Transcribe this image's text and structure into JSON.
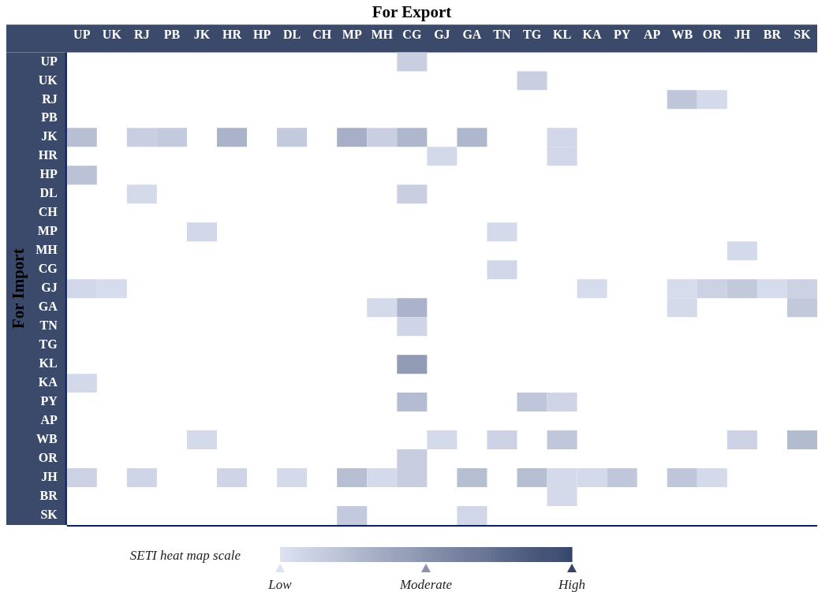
{
  "chart_data": {
    "type": "heatmap",
    "title": "For Export",
    "ylabel": "For Import",
    "clabel": "SETI heat map scale",
    "categories": [
      "UP",
      "UK",
      "RJ",
      "PB",
      "JK",
      "HR",
      "HP",
      "DL",
      "CH",
      "MP",
      "MH",
      "CG",
      "GJ",
      "GA",
      "TN",
      "TG",
      "KL",
      "KA",
      "PY",
      "AP",
      "WB",
      "OR",
      "JH",
      "BR",
      "SK"
    ],
    "y_categories": [
      "UP",
      "UK",
      "RJ",
      "PB",
      "JK",
      "HR",
      "HP",
      "DL",
      "CH",
      "MP",
      "MH",
      "CG",
      "GJ",
      "GA",
      "TN",
      "TG",
      "KL",
      "KA",
      "PY",
      "AP",
      "WB",
      "OR",
      "JH",
      "BR",
      "SK"
    ],
    "cells": [
      [
        null,
        null,
        null,
        null,
        null,
        null,
        null,
        null,
        null,
        null,
        null,
        0.12,
        null,
        null,
        null,
        null,
        null,
        null,
        null,
        null,
        null,
        null,
        null,
        null,
        null
      ],
      [
        null,
        null,
        null,
        null,
        null,
        null,
        null,
        null,
        null,
        null,
        null,
        null,
        null,
        null,
        null,
        0.12,
        null,
        null,
        null,
        null,
        null,
        null,
        null,
        null,
        null
      ],
      [
        null,
        null,
        null,
        null,
        null,
        null,
        null,
        null,
        null,
        null,
        null,
        null,
        null,
        null,
        null,
        null,
        null,
        null,
        null,
        null,
        0.18,
        0.05,
        null,
        null,
        null
      ],
      [
        null,
        null,
        null,
        null,
        null,
        null,
        null,
        null,
        null,
        null,
        null,
        null,
        null,
        null,
        null,
        null,
        null,
        null,
        null,
        null,
        null,
        null,
        null,
        null,
        null
      ],
      [
        0.22,
        null,
        0.12,
        0.15,
        null,
        0.3,
        null,
        0.15,
        null,
        0.32,
        0.12,
        0.27,
        null,
        0.27,
        null,
        null,
        0.07,
        null,
        null,
        null,
        null,
        null,
        null,
        null,
        null
      ],
      [
        null,
        null,
        null,
        null,
        null,
        null,
        null,
        null,
        null,
        null,
        null,
        null,
        0.06,
        null,
        null,
        null,
        0.07,
        null,
        null,
        null,
        null,
        null,
        null,
        null,
        null
      ],
      [
        0.2,
        null,
        null,
        null,
        null,
        null,
        null,
        null,
        null,
        null,
        null,
        null,
        null,
        null,
        null,
        null,
        null,
        null,
        null,
        null,
        null,
        null,
        null,
        null,
        null
      ],
      [
        null,
        null,
        0.05,
        null,
        null,
        null,
        null,
        null,
        null,
        null,
        null,
        0.12,
        null,
        null,
        null,
        null,
        null,
        null,
        null,
        null,
        null,
        null,
        null,
        null,
        null
      ],
      [
        null,
        null,
        null,
        null,
        null,
        null,
        null,
        null,
        null,
        null,
        null,
        null,
        null,
        null,
        null,
        null,
        null,
        null,
        null,
        null,
        null,
        null,
        null,
        null,
        null
      ],
      [
        null,
        null,
        null,
        null,
        0.07,
        null,
        null,
        null,
        null,
        null,
        null,
        null,
        null,
        null,
        0.05,
        null,
        null,
        null,
        null,
        null,
        null,
        null,
        null,
        null,
        null
      ],
      [
        null,
        null,
        null,
        null,
        null,
        null,
        null,
        null,
        null,
        null,
        null,
        null,
        null,
        null,
        null,
        null,
        null,
        null,
        null,
        null,
        null,
        null,
        0.05,
        null,
        null
      ],
      [
        null,
        null,
        null,
        null,
        null,
        null,
        null,
        null,
        null,
        null,
        null,
        null,
        null,
        null,
        0.07,
        null,
        null,
        null,
        null,
        null,
        null,
        null,
        null,
        null,
        null
      ],
      [
        0.07,
        0.04,
        null,
        null,
        null,
        null,
        null,
        null,
        null,
        null,
        null,
        null,
        null,
        null,
        null,
        null,
        null,
        0.04,
        null,
        null,
        0.04,
        0.1,
        0.16,
        0.04,
        0.1
      ],
      [
        null,
        null,
        null,
        null,
        null,
        null,
        null,
        null,
        null,
        null,
        0.05,
        0.3,
        null,
        null,
        null,
        null,
        null,
        null,
        null,
        null,
        0.05,
        null,
        null,
        null,
        0.16
      ],
      [
        null,
        null,
        null,
        null,
        null,
        null,
        null,
        null,
        null,
        null,
        null,
        0.08,
        null,
        null,
        null,
        null,
        null,
        null,
        null,
        null,
        null,
        null,
        null,
        null,
        null
      ],
      [
        null,
        null,
        null,
        null,
        null,
        null,
        null,
        null,
        null,
        null,
        null,
        null,
        null,
        null,
        null,
        null,
        null,
        null,
        null,
        null,
        null,
        null,
        null,
        null,
        null
      ],
      [
        null,
        null,
        null,
        null,
        null,
        null,
        null,
        null,
        null,
        null,
        null,
        0.45,
        null,
        null,
        null,
        null,
        null,
        null,
        null,
        null,
        null,
        null,
        null,
        null,
        null
      ],
      [
        0.06,
        null,
        null,
        null,
        null,
        null,
        null,
        null,
        null,
        null,
        null,
        null,
        null,
        null,
        null,
        null,
        null,
        null,
        null,
        null,
        null,
        null,
        null,
        null,
        null
      ],
      [
        null,
        null,
        null,
        null,
        null,
        null,
        null,
        null,
        null,
        null,
        null,
        0.24,
        null,
        null,
        null,
        0.18,
        0.08,
        null,
        null,
        null,
        null,
        null,
        null,
        null,
        null
      ],
      [
        null,
        null,
        null,
        null,
        null,
        null,
        null,
        null,
        null,
        null,
        null,
        null,
        null,
        null,
        null,
        null,
        null,
        null,
        null,
        null,
        null,
        null,
        null,
        null,
        null
      ],
      [
        null,
        null,
        null,
        null,
        0.05,
        null,
        null,
        null,
        null,
        null,
        null,
        null,
        0.05,
        null,
        0.1,
        null,
        0.17,
        null,
        null,
        null,
        null,
        null,
        0.1,
        null,
        0.25
      ],
      [
        null,
        null,
        null,
        null,
        null,
        null,
        null,
        null,
        null,
        null,
        null,
        0.13,
        null,
        null,
        null,
        null,
        null,
        null,
        null,
        null,
        null,
        null,
        null,
        null,
        null
      ],
      [
        0.1,
        null,
        0.08,
        null,
        null,
        0.08,
        null,
        0.05,
        null,
        0.22,
        0.05,
        0.13,
        null,
        0.23,
        null,
        0.23,
        0.05,
        0.05,
        0.17,
        null,
        0.18,
        0.05,
        null,
        null,
        null
      ],
      [
        null,
        null,
        null,
        null,
        null,
        null,
        null,
        null,
        null,
        null,
        null,
        null,
        null,
        null,
        null,
        null,
        0.05,
        null,
        null,
        null,
        null,
        null,
        null,
        null,
        null
      ],
      [
        null,
        null,
        null,
        null,
        null,
        null,
        null,
        null,
        null,
        0.15,
        null,
        null,
        null,
        0.07,
        null,
        null,
        null,
        null,
        null,
        null,
        null,
        null,
        null,
        null,
        null
      ]
    ],
    "colors": [
      "#dde2f1",
      "#34446a"
    ],
    "clim": [
      0,
      1
    ],
    "cticks": [
      {
        "value": 0,
        "label": "Low"
      },
      {
        "value": 0.5,
        "label": "Moderate"
      },
      {
        "value": 1,
        "label": "High"
      }
    ]
  }
}
